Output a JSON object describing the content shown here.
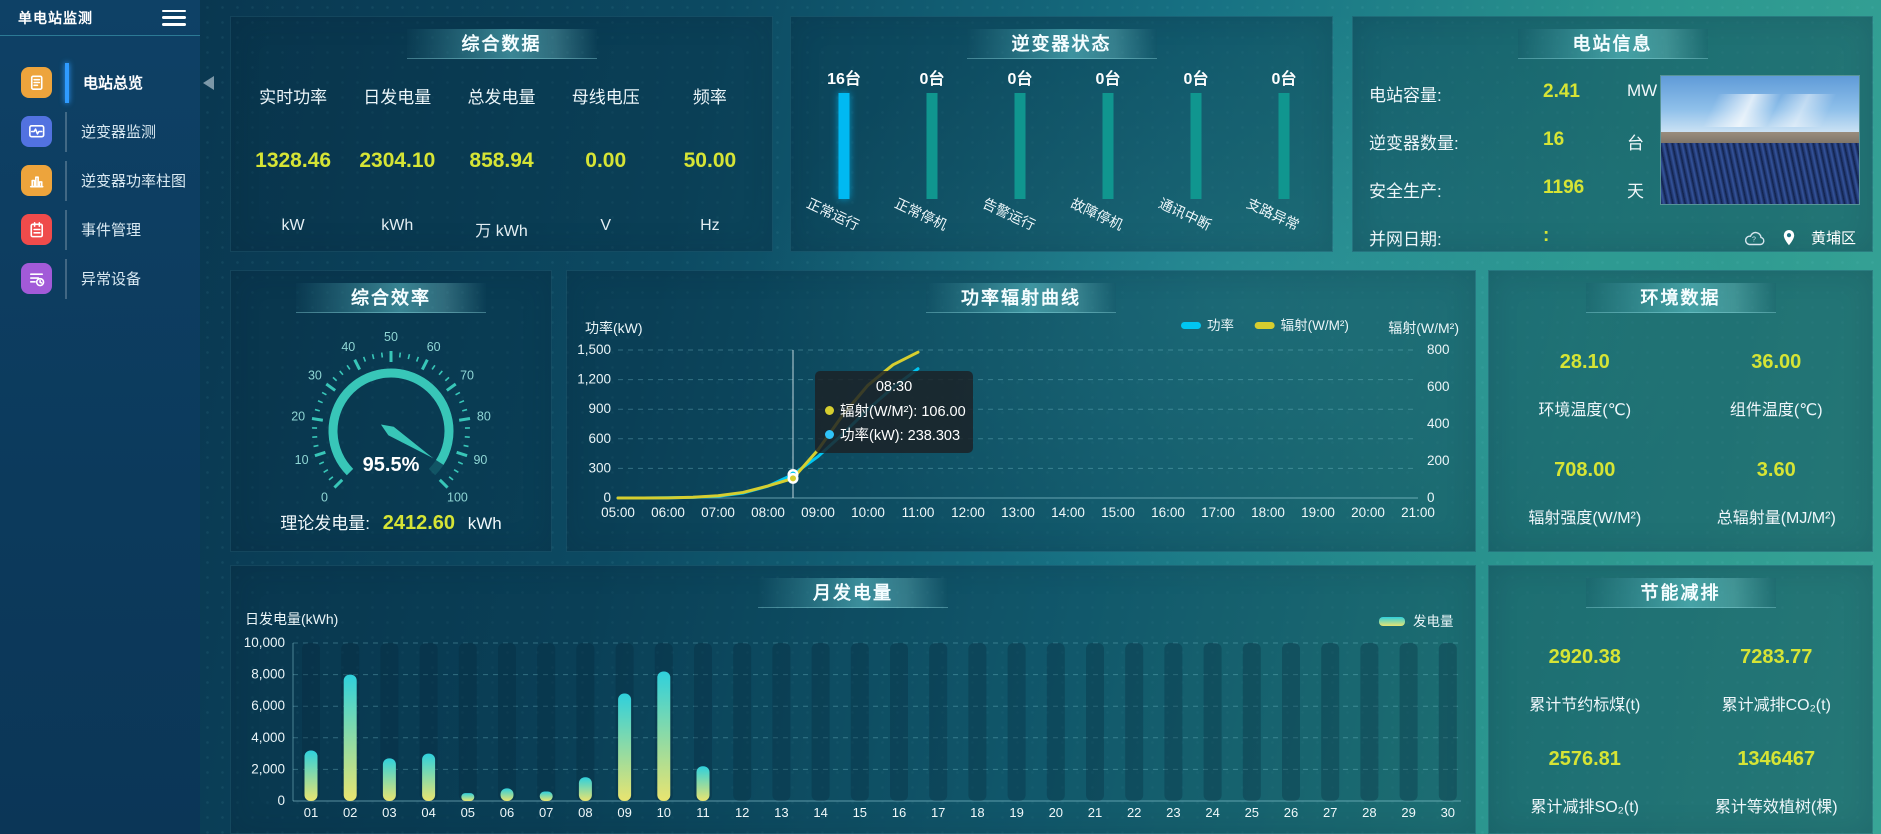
{
  "app": {
    "title": "单电站监测"
  },
  "sidebar": {
    "items": [
      {
        "id": "station-overview",
        "label": "电站总览",
        "icon": "doc",
        "color": "#eda43c",
        "active": true
      },
      {
        "id": "inverter-monitor",
        "label": "逆变器监测",
        "icon": "monitor",
        "color": "#5272e0",
        "active": false
      },
      {
        "id": "inverter-power-bars",
        "label": "逆变器功率柱图",
        "icon": "bars",
        "color": "#eda43c",
        "active": false
      },
      {
        "id": "event-management",
        "label": "事件管理",
        "icon": "note",
        "color": "#ef4b4b",
        "active": false
      },
      {
        "id": "abnormal-devices",
        "label": "异常设备",
        "icon": "list",
        "color": "#a25ad8",
        "active": false
      }
    ]
  },
  "panels": {
    "summary": {
      "title": "综合数据",
      "items": [
        {
          "label": "实时功率",
          "value": "1328.46",
          "unit": "kW"
        },
        {
          "label": "日发电量",
          "value": "2304.10",
          "unit": "kWh"
        },
        {
          "label": "总发电量",
          "value": "858.94",
          "unit": "万 kWh"
        },
        {
          "label": "母线电压",
          "value": "0.00",
          "unit": "V"
        },
        {
          "label": "频率",
          "value": "50.00",
          "unit": "Hz"
        }
      ]
    },
    "inverter_status": {
      "title": "逆变器状态",
      "items": [
        {
          "label": "正常运行",
          "count": "16台",
          "highlight": true
        },
        {
          "label": "正常停机",
          "count": "0台",
          "highlight": false
        },
        {
          "label": "告警运行",
          "count": "0台",
          "highlight": false
        },
        {
          "label": "故障停机",
          "count": "0台",
          "highlight": false
        },
        {
          "label": "通讯中断",
          "count": "0台",
          "highlight": false
        },
        {
          "label": "支路异常",
          "count": "0台",
          "highlight": false
        }
      ]
    },
    "station_info": {
      "title": "电站信息",
      "rows": [
        {
          "label": "电站容量:",
          "value": "2.41",
          "unit": "MW"
        },
        {
          "label": "逆变器数量:",
          "value": "16",
          "unit": "台"
        },
        {
          "label": "安全生产:",
          "value": "1196",
          "unit": "天"
        },
        {
          "label": "并网日期:",
          "value": ":",
          "unit": ""
        }
      ],
      "location": "黄埔区"
    },
    "efficiency": {
      "title": "综合效率",
      "theory_label": "理论发电量:",
      "theory_value": "2412.60",
      "theory_unit": "kWh"
    },
    "power_curve": {
      "title": "功率辐射曲线"
    },
    "environment": {
      "title": "环境数据",
      "items": [
        {
          "value": "28.10",
          "label": "环境温度(℃)"
        },
        {
          "value": "36.00",
          "label": "组件温度(℃)"
        },
        {
          "value": "708.00",
          "label": "辐射强度(W/M²)"
        },
        {
          "value": "3.60",
          "label": "总辐射量(MJ/M²)"
        }
      ]
    },
    "monthly": {
      "title": "月发电量"
    },
    "energy_saving": {
      "title": "节能减排",
      "items": [
        {
          "value": "2920.38",
          "label": "累计节约标煤(t)"
        },
        {
          "value": "7283.77",
          "label": "累计减排CO₂(t)"
        },
        {
          "value": "2576.81",
          "label": "累计减排SO₂(t)"
        },
        {
          "value": "1346467",
          "label": "累计等效植树(棵)"
        }
      ]
    }
  },
  "chart_data": [
    {
      "id": "power-radiation-curve",
      "type": "line",
      "title": "功率辐射曲线",
      "x_labels": [
        "05:00",
        "06:00",
        "07:00",
        "08:00",
        "09:00",
        "10:00",
        "11:00",
        "12:00",
        "13:00",
        "14:00",
        "15:00",
        "16:00",
        "17:00",
        "18:00",
        "19:00",
        "20:00",
        "21:00"
      ],
      "left_axis": {
        "label": "功率(kW)",
        "ticks": [
          0,
          300,
          600,
          900,
          1200,
          1500
        ],
        "max": 1500
      },
      "right_axis": {
        "label": "辐射(W/M²)",
        "ticks": [
          0,
          200,
          400,
          600,
          800
        ],
        "max": 800
      },
      "legend": [
        {
          "name": "功率",
          "color": "#00c6f2"
        },
        {
          "name": "辐射(W/M²)",
          "color": "#d6ce2f"
        }
      ],
      "series": [
        {
          "name": "功率",
          "axis": "left",
          "color": "#00c6f2",
          "points": [
            [
              5,
              0
            ],
            [
              5.5,
              0.5
            ],
            [
              6,
              2
            ],
            [
              6.5,
              6
            ],
            [
              7,
              18
            ],
            [
              7.5,
              50
            ],
            [
              8,
              120
            ],
            [
              8.5,
              238.303
            ],
            [
              9,
              420
            ],
            [
              9.5,
              650
            ],
            [
              10,
              900
            ],
            [
              10.5,
              1120
            ],
            [
              11,
              1310
            ]
          ]
        },
        {
          "name": "辐射(W/M²)",
          "axis": "right",
          "color": "#d6ce2f",
          "points": [
            [
              5,
              0
            ],
            [
              5.5,
              0.3
            ],
            [
              6,
              1
            ],
            [
              6.5,
              4
            ],
            [
              7,
              12
            ],
            [
              7.5,
              30
            ],
            [
              8,
              65
            ],
            [
              8.5,
              106
            ],
            [
              9,
              260
            ],
            [
              9.5,
              450
            ],
            [
              10,
              610
            ],
            [
              10.5,
              720
            ],
            [
              11,
              788
            ]
          ]
        }
      ],
      "pointer_hour": 8.5,
      "tooltip": {
        "time": "08:30",
        "items": [
          {
            "name": "辐射(W/M²)",
            "value": "106.00",
            "color": "#d6ce2f"
          },
          {
            "name": "功率(kW)",
            "value": "238.303",
            "color": "#2fc3f7"
          }
        ]
      }
    },
    {
      "id": "monthly-generation",
      "type": "bar",
      "title": "月发电量",
      "ylabel": "日发电量(kWh)",
      "legend": "发电量",
      "categories": [
        "01",
        "02",
        "03",
        "04",
        "05",
        "06",
        "07",
        "08",
        "09",
        "10",
        "11",
        "12",
        "13",
        "14",
        "15",
        "16",
        "17",
        "18",
        "19",
        "20",
        "21",
        "22",
        "23",
        "24",
        "25",
        "26",
        "27",
        "28",
        "29",
        "30"
      ],
      "values": [
        3200,
        8000,
        2700,
        3000,
        500,
        800,
        600,
        1500,
        6800,
        8200,
        2200,
        0,
        0,
        0,
        0,
        0,
        0,
        0,
        0,
        0,
        0,
        0,
        0,
        0,
        0,
        0,
        0,
        0,
        0,
        0
      ],
      "yticks": [
        0,
        2000,
        4000,
        6000,
        8000,
        10000
      ],
      "ylim": [
        0,
        10000
      ]
    },
    {
      "id": "efficiency-gauge",
      "type": "gauge",
      "value": 95.5,
      "display": "95.5%",
      "min": 0,
      "max": 100,
      "tick_labels": [
        0,
        10,
        20,
        30,
        40,
        50,
        60,
        70,
        80,
        90,
        100
      ],
      "color": "#38c6b8"
    },
    {
      "id": "inverter-status-bars",
      "type": "bar",
      "categories": [
        "正常运行",
        "正常停机",
        "告警运行",
        "故障停机",
        "通讯中断",
        "支路异常"
      ],
      "values": [
        16,
        0,
        0,
        0,
        0,
        0
      ],
      "unit": "台",
      "colors": {
        "highlight": "#00b9f2",
        "normal": "#10968f"
      }
    }
  ],
  "colors": {
    "value_text": "#d6e435",
    "accent": "#2f9bff",
    "panel_title_text": "#f4fdff"
  }
}
